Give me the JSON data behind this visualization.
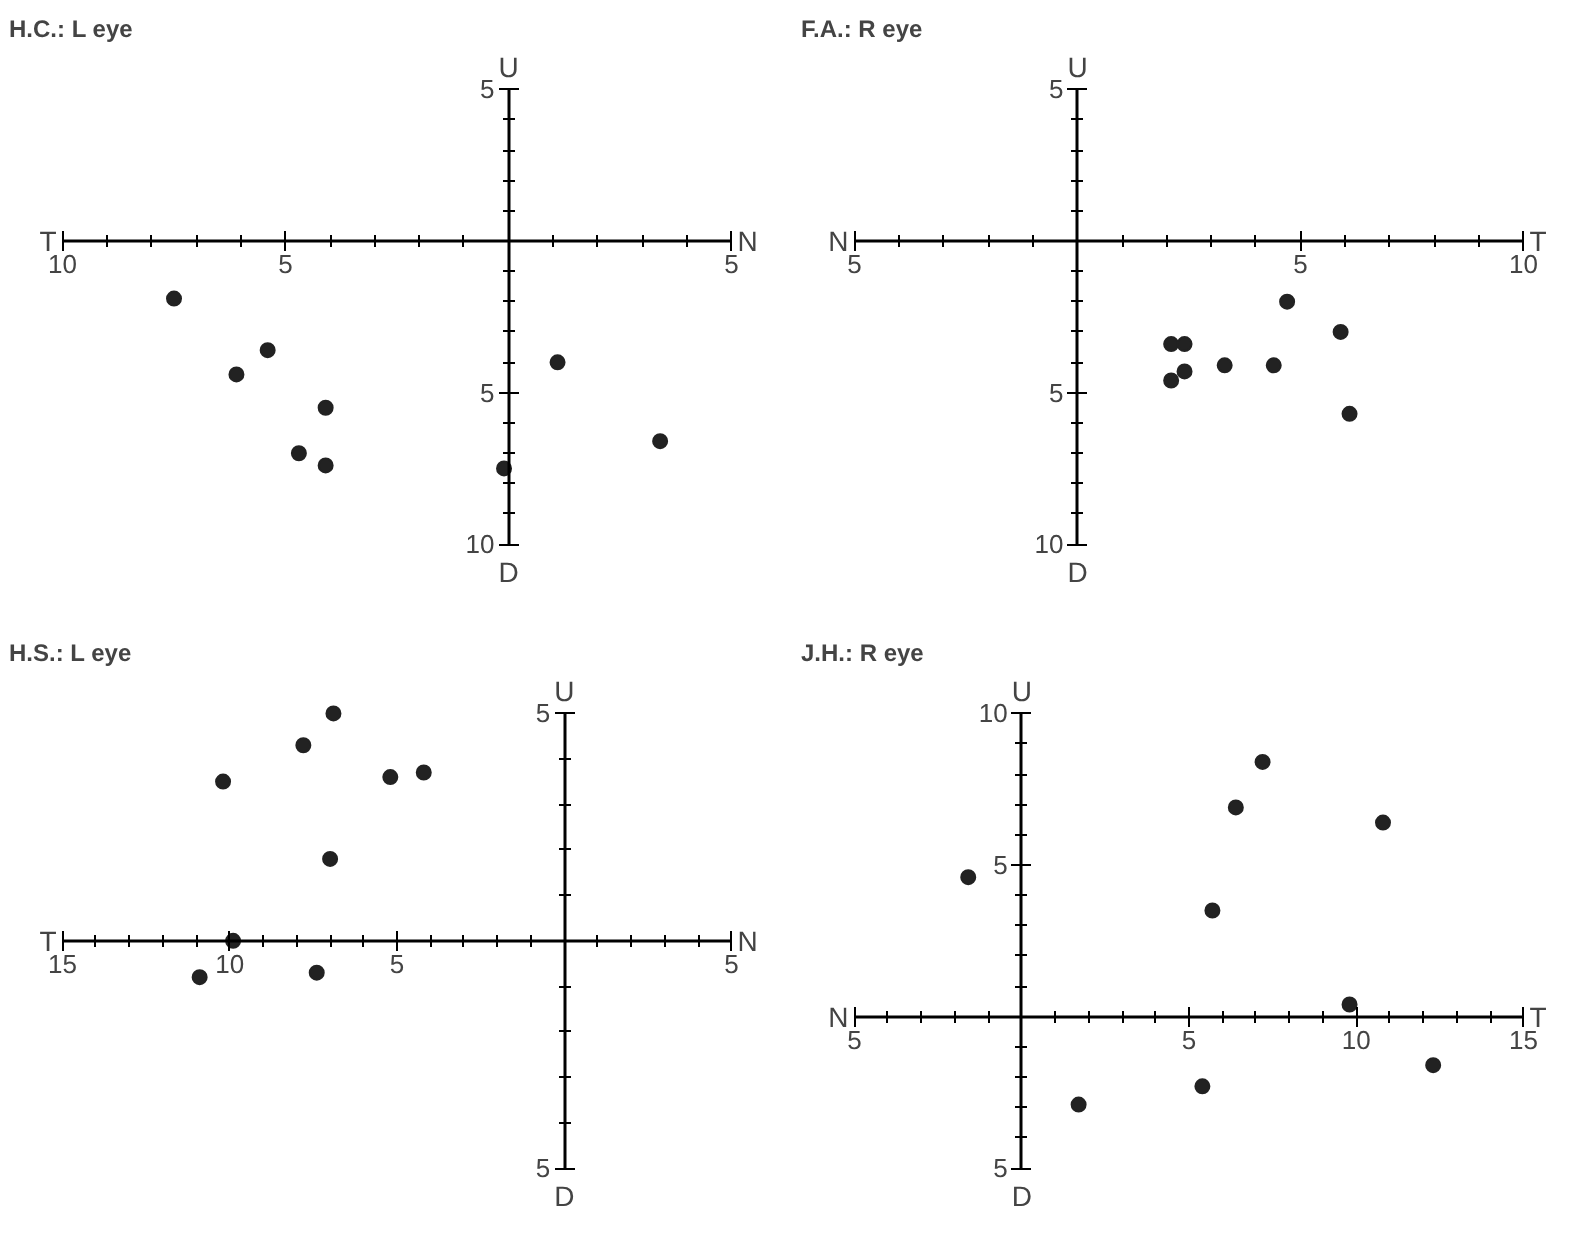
{
  "chart_data": [
    {
      "type": "scatter",
      "title": "H.C.: L eye",
      "annotations": [
        "T",
        "N",
        "U",
        "D"
      ],
      "marker": "circle",
      "grid": false,
      "xlim": [
        -10,
        5
      ],
      "ylim": [
        -10,
        5
      ],
      "xticks": [
        {
          "value": -10,
          "label": "10"
        },
        {
          "value": -9,
          "label": null
        },
        {
          "value": -8,
          "label": null
        },
        {
          "value": -7,
          "label": null
        },
        {
          "value": -6,
          "label": null
        },
        {
          "value": -5,
          "label": "5"
        },
        {
          "value": -4,
          "label": null
        },
        {
          "value": -3,
          "label": null
        },
        {
          "value": -2,
          "label": null
        },
        {
          "value": -1,
          "label": null
        },
        {
          "value": 1,
          "label": null
        },
        {
          "value": 2,
          "label": null
        },
        {
          "value": 3,
          "label": null
        },
        {
          "value": 4,
          "label": null
        },
        {
          "value": 5,
          "label": "5"
        }
      ],
      "yticks": [
        {
          "value": 5,
          "label": "5"
        },
        {
          "value": 4,
          "label": null
        },
        {
          "value": 3,
          "label": null
        },
        {
          "value": 2,
          "label": null
        },
        {
          "value": 1,
          "label": null
        },
        {
          "value": -1,
          "label": null
        },
        {
          "value": -2,
          "label": null
        },
        {
          "value": -3,
          "label": null
        },
        {
          "value": -4,
          "label": null
        },
        {
          "value": -5,
          "label": "5"
        },
        {
          "value": -6,
          "label": null
        },
        {
          "value": -7,
          "label": null
        },
        {
          "value": -8,
          "label": null
        },
        {
          "value": -9,
          "label": null
        },
        {
          "value": -10,
          "label": "10"
        }
      ],
      "x": [
        -7.5,
        -5.4,
        -6.1,
        -4.1,
        -4.7,
        -4.1,
        -0.1,
        1.1,
        3.4
      ],
      "series": [
        {
          "color": "#222222",
          "values": [
            -1.9,
            -3.6,
            -4.4,
            -5.5,
            -7.0,
            -7.4,
            -7.5,
            -4.0,
            -6.6
          ]
        }
      ]
    },
    {
      "type": "scatter",
      "title": "F.A.: R eye",
      "annotations": [
        "N",
        "T",
        "U",
        "D"
      ],
      "marker": "circle",
      "grid": false,
      "xlim": [
        -5,
        10
      ],
      "ylim": [
        -10,
        5
      ],
      "xticks": [
        {
          "value": -5,
          "label": "5"
        },
        {
          "value": -4,
          "label": null
        },
        {
          "value": -3,
          "label": null
        },
        {
          "value": -2,
          "label": null
        },
        {
          "value": -1,
          "label": null
        },
        {
          "value": 1,
          "label": null
        },
        {
          "value": 2,
          "label": null
        },
        {
          "value": 3,
          "label": null
        },
        {
          "value": 4,
          "label": null
        },
        {
          "value": 5,
          "label": "5"
        },
        {
          "value": 6,
          "label": null
        },
        {
          "value": 7,
          "label": null
        },
        {
          "value": 8,
          "label": null
        },
        {
          "value": 9,
          "label": null
        },
        {
          "value": 10,
          "label": "10"
        }
      ],
      "yticks": [
        {
          "value": 5,
          "label": "5"
        },
        {
          "value": 4,
          "label": null
        },
        {
          "value": 3,
          "label": null
        },
        {
          "value": 2,
          "label": null
        },
        {
          "value": 1,
          "label": null
        },
        {
          "value": -1,
          "label": null
        },
        {
          "value": -2,
          "label": null
        },
        {
          "value": -3,
          "label": null
        },
        {
          "value": -4,
          "label": null
        },
        {
          "value": -5,
          "label": "5"
        },
        {
          "value": -6,
          "label": null
        },
        {
          "value": -7,
          "label": null
        },
        {
          "value": -8,
          "label": null
        },
        {
          "value": -9,
          "label": null
        },
        {
          "value": -10,
          "label": "10"
        }
      ],
      "x": [
        4.7,
        5.9,
        2.1,
        2.4,
        3.3,
        4.4,
        2.1,
        2.4,
        6.1
      ],
      "series": [
        {
          "color": "#222222",
          "values": [
            -2.0,
            -3.0,
            -3.4,
            -3.4,
            -4.1,
            -4.1,
            -4.6,
            -4.3,
            -5.7
          ]
        }
      ]
    },
    {
      "type": "scatter",
      "title": "H.S.: L eye",
      "annotations": [
        "T",
        "N",
        "U",
        "D"
      ],
      "marker": "circle",
      "grid": false,
      "xlim": [
        -15,
        5
      ],
      "ylim": [
        -5,
        5
      ],
      "xticks": [
        {
          "value": -15,
          "label": "15"
        },
        {
          "value": -14,
          "label": null
        },
        {
          "value": -13,
          "label": null
        },
        {
          "value": -12,
          "label": null
        },
        {
          "value": -11,
          "label": null
        },
        {
          "value": -10,
          "label": "10"
        },
        {
          "value": -9,
          "label": null
        },
        {
          "value": -8,
          "label": null
        },
        {
          "value": -7,
          "label": null
        },
        {
          "value": -6,
          "label": null
        },
        {
          "value": -5,
          "label": "5"
        },
        {
          "value": -4,
          "label": null
        },
        {
          "value": -3,
          "label": null
        },
        {
          "value": -2,
          "label": null
        },
        {
          "value": -1,
          "label": null
        },
        {
          "value": 1,
          "label": null
        },
        {
          "value": 2,
          "label": null
        },
        {
          "value": 3,
          "label": null
        },
        {
          "value": 4,
          "label": null
        },
        {
          "value": 5,
          "label": "5"
        }
      ],
      "yticks": [
        {
          "value": 5,
          "label": "5"
        },
        {
          "value": 4,
          "label": null
        },
        {
          "value": 3,
          "label": null
        },
        {
          "value": 2,
          "label": null
        },
        {
          "value": 1,
          "label": null
        },
        {
          "value": -1,
          "label": null
        },
        {
          "value": -2,
          "label": null
        },
        {
          "value": -3,
          "label": null
        },
        {
          "value": -4,
          "label": null
        },
        {
          "value": -5,
          "label": "5"
        }
      ],
      "x": [
        -10.2,
        -7.8,
        -6.9,
        -5.2,
        -4.2,
        -7.0,
        -9.9,
        -10.9,
        -7.4
      ],
      "series": [
        {
          "color": "#222222",
          "values": [
            3.5,
            4.3,
            5.0,
            3.6,
            3.7,
            1.8,
            0.0,
            -0.8,
            -0.7
          ]
        }
      ]
    },
    {
      "type": "scatter",
      "title": "J.H.: R eye",
      "annotations": [
        "N",
        "T",
        "U",
        "D"
      ],
      "marker": "circle",
      "grid": false,
      "xlim": [
        -5,
        15
      ],
      "ylim": [
        -5,
        10
      ],
      "xticks": [
        {
          "value": -5,
          "label": "5"
        },
        {
          "value": -4,
          "label": null
        },
        {
          "value": -3,
          "label": null
        },
        {
          "value": -2,
          "label": null
        },
        {
          "value": -1,
          "label": null
        },
        {
          "value": 1,
          "label": null
        },
        {
          "value": 2,
          "label": null
        },
        {
          "value": 3,
          "label": null
        },
        {
          "value": 4,
          "label": null
        },
        {
          "value": 5,
          "label": "5"
        },
        {
          "value": 6,
          "label": null
        },
        {
          "value": 7,
          "label": null
        },
        {
          "value": 8,
          "label": null
        },
        {
          "value": 9,
          "label": null
        },
        {
          "value": 10,
          "label": "10"
        },
        {
          "value": 11,
          "label": null
        },
        {
          "value": 12,
          "label": null
        },
        {
          "value": 13,
          "label": null
        },
        {
          "value": 14,
          "label": null
        },
        {
          "value": 15,
          "label": "15"
        }
      ],
      "yticks": [
        {
          "value": 10,
          "label": "10"
        },
        {
          "value": 9,
          "label": null
        },
        {
          "value": 8,
          "label": null
        },
        {
          "value": 7,
          "label": null
        },
        {
          "value": 6,
          "label": null
        },
        {
          "value": 5,
          "label": "5"
        },
        {
          "value": 4,
          "label": null
        },
        {
          "value": 3,
          "label": null
        },
        {
          "value": 2,
          "label": null
        },
        {
          "value": 1,
          "label": null
        },
        {
          "value": -1,
          "label": null
        },
        {
          "value": -2,
          "label": null
        },
        {
          "value": -3,
          "label": null
        },
        {
          "value": -4,
          "label": null
        },
        {
          "value": -5,
          "label": "5"
        }
      ],
      "x": [
        -1.6,
        5.7,
        6.4,
        7.2,
        10.8,
        9.8,
        12.3,
        5.4,
        1.7
      ],
      "series": [
        {
          "color": "#222222",
          "values": [
            4.6,
            3.5,
            6.9,
            8.4,
            6.4,
            0.4,
            -1.6,
            -2.3,
            -2.9
          ]
        }
      ]
    }
  ]
}
